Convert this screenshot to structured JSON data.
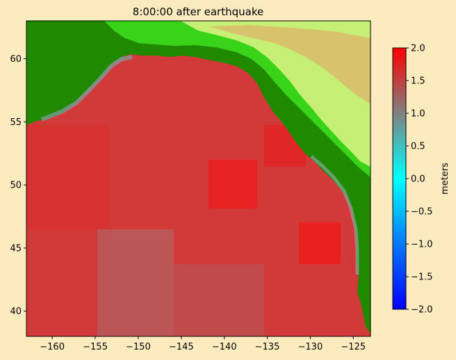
{
  "chart_data": {
    "type": "heatmap",
    "title": "8:00:00 after earthquake",
    "xlabel": "",
    "ylabel": "",
    "xlim": [
      -163,
      -123
    ],
    "ylim": [
      38,
      63
    ],
    "x_ticks": [
      -160,
      -155,
      -150,
      -145,
      -140,
      -135,
      -130,
      -125
    ],
    "x_tick_labels": [
      "−160",
      "−155",
      "−150",
      "−145",
      "−140",
      "−135",
      "−130",
      "−125"
    ],
    "y_ticks": [
      40,
      45,
      50,
      55,
      60
    ],
    "y_tick_labels": [
      "40",
      "45",
      "50",
      "55",
      "60"
    ],
    "colorbar": {
      "label": "meters",
      "range": [
        -2.0,
        2.0
      ],
      "ticks": [
        -2.0,
        -1.5,
        -1.0,
        -0.5,
        0.0,
        0.5,
        1.0,
        1.5,
        2.0
      ],
      "tick_labels": [
        "−2.0",
        "−1.5",
        "−1.0",
        "−0.5",
        "0.0",
        "0.5",
        "1.0",
        "1.5",
        "2.0"
      ],
      "colors": [
        "#0000ff",
        "#0078ff",
        "#00ffff",
        "#808080",
        "#ff0000"
      ]
    },
    "ocean_field_description_values": {
      "dominant_value_m": 1.6,
      "min_value_m": 0.3,
      "max_value_m": 2.0
    },
    "land_colors": [
      "#1a7a00",
      "#33cc00",
      "#66ff33",
      "#ccff66",
      "#e6d27a",
      "#c89646"
    ],
    "background_color": "#fdebc0"
  }
}
